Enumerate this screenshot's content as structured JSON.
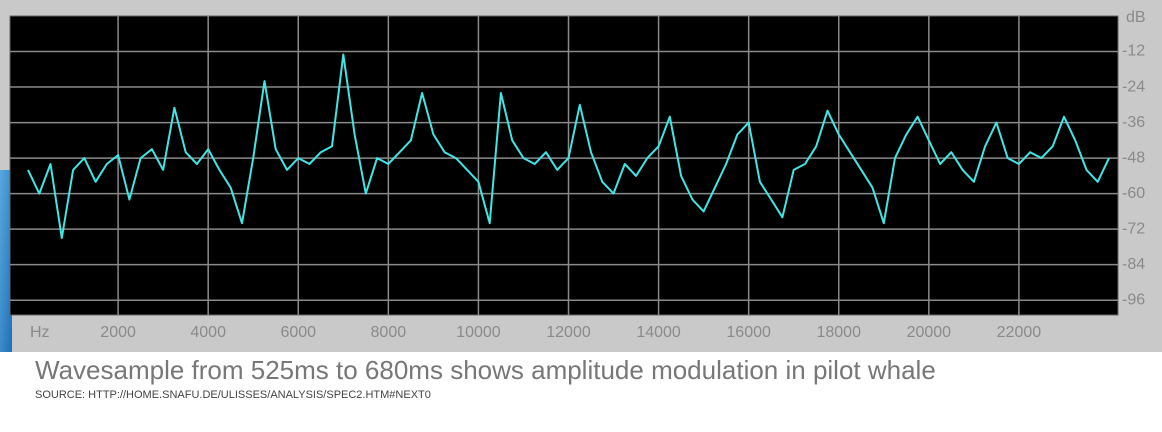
{
  "chart_data": {
    "type": "line",
    "x_label": "Hz",
    "y_label": "dB",
    "x": [
      0,
      250,
      500,
      750,
      1000,
      1250,
      1500,
      1750,
      2000,
      2250,
      2500,
      2750,
      3000,
      3250,
      3500,
      3750,
      4000,
      4250,
      4500,
      4750,
      5000,
      5250,
      5500,
      5750,
      6000,
      6250,
      6500,
      6750,
      7000,
      7250,
      7500,
      7750,
      8000,
      8250,
      8500,
      8750,
      9000,
      9250,
      9500,
      9750,
      10000,
      10250,
      10500,
      10750,
      11000,
      11250,
      11500,
      11750,
      12000,
      12250,
      12500,
      12750,
      13000,
      13250,
      13500,
      13750,
      14000,
      14250,
      14500,
      14750,
      15000,
      15250,
      15500,
      15750,
      16000,
      16250,
      16500,
      16750,
      17000,
      17250,
      17500,
      17750,
      18000,
      18250,
      18500,
      18750,
      19000,
      19250,
      19500,
      19750,
      20000,
      20250,
      20500,
      20750,
      21000,
      21250,
      21500,
      21750,
      22000,
      22250,
      22500,
      22750,
      23000,
      23250,
      23500,
      23750,
      24000
    ],
    "values": [
      -52,
      -60,
      -50,
      -75,
      -52,
      -48,
      -56,
      -50,
      -47,
      -62,
      -48,
      -45,
      -52,
      -31,
      -46,
      -50,
      -45,
      -52,
      -58,
      -70,
      -48,
      -22,
      -45,
      -52,
      -48,
      -50,
      -46,
      -44,
      -13,
      -40,
      -60,
      -48,
      -50,
      -46,
      -42,
      -26,
      -40,
      -46,
      -48,
      -52,
      -56,
      -70,
      -26,
      -42,
      -48,
      -50,
      -46,
      -52,
      -48,
      -30,
      -46,
      -56,
      -60,
      -50,
      -54,
      -48,
      -44,
      -34,
      -54,
      -62,
      -66,
      -58,
      -50,
      -40,
      -36,
      -56,
      -62,
      -68,
      -52,
      -50,
      -44,
      -32,
      -40,
      -46,
      -52,
      -58,
      -70,
      -48,
      -40,
      -34,
      -42,
      -50,
      -46,
      -52,
      -56,
      -44,
      -36,
      -48,
      -50,
      -46,
      -48,
      -44,
      -34,
      -42,
      -52,
      -56,
      -48
    ],
    "color": "#3fe6e6",
    "xlim": [
      -400,
      24200
    ],
    "xticks": [
      2000,
      4000,
      6000,
      8000,
      10000,
      12000,
      14000,
      16000,
      18000,
      20000,
      22000
    ],
    "ylim": [
      -101,
      0
    ],
    "yticks": [
      -12,
      -24,
      -36,
      -48,
      -60,
      -72,
      -84,
      -96
    ],
    "grid": true,
    "caption": "Wavesample from 525ms to 680ms shows amplitude modulation in pilot whale",
    "source": "SOURCE: HTTP://HOME.SNAFU.DE/ULISSES/ANALYSIS/SPEC2.HTM#NEXT0"
  }
}
